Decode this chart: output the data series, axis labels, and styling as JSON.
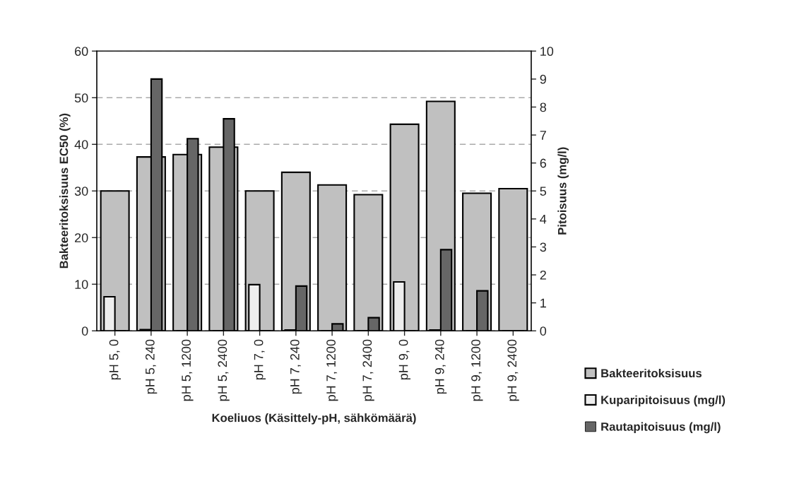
{
  "chart_data": {
    "type": "bar",
    "xlabel": "Koeliuos (Käsittely-pH, sähkömäärä)",
    "ylabel": "Bakteeritoksisuus EC50 (%)",
    "y2label": "Pitoisuus (mg/l)",
    "categories": [
      "pH 5, 0",
      "pH 5, 240",
      "pH 5, 1200",
      "pH 5, 2400",
      "pH 7, 0",
      "pH 7, 240",
      "pH 7, 1200",
      "pH 7, 2400",
      "pH 9, 0",
      "pH 9, 240",
      "pH 9, 1200",
      "pH 9, 2400"
    ],
    "series": [
      {
        "name": "Bakteeritoksisuus",
        "color": "#c0c0c0",
        "values": [
          30,
          37.3,
          37.8,
          39.4,
          30,
          34,
          31.3,
          29.2,
          44.3,
          49.2,
          29.5,
          30.5
        ]
      },
      {
        "name": "Kuparipitoisuus (mg/l)",
        "color": "#eeeeee",
        "axis": "y2",
        "values": [
          1.22,
          0.04,
          0,
          0,
          1.65,
          0.03,
          0,
          0,
          1.75,
          0.03,
          0,
          0
        ]
      },
      {
        "name": "Rautapitoisuus (mg/l)",
        "color": "#666666",
        "axis": "y2",
        "values": [
          0,
          9.0,
          6.87,
          7.58,
          0,
          1.6,
          0.25,
          0.47,
          0,
          2.9,
          1.43,
          0
        ]
      }
    ],
    "ylim": [
      0,
      60
    ],
    "yticks": [
      0,
      10,
      20,
      30,
      40,
      50,
      60
    ],
    "y2lim": [
      0,
      10
    ],
    "y2ticks": [
      0,
      1,
      2,
      3,
      4,
      5,
      6,
      7,
      8,
      9,
      10
    ],
    "grid": "y",
    "legend": "right"
  }
}
